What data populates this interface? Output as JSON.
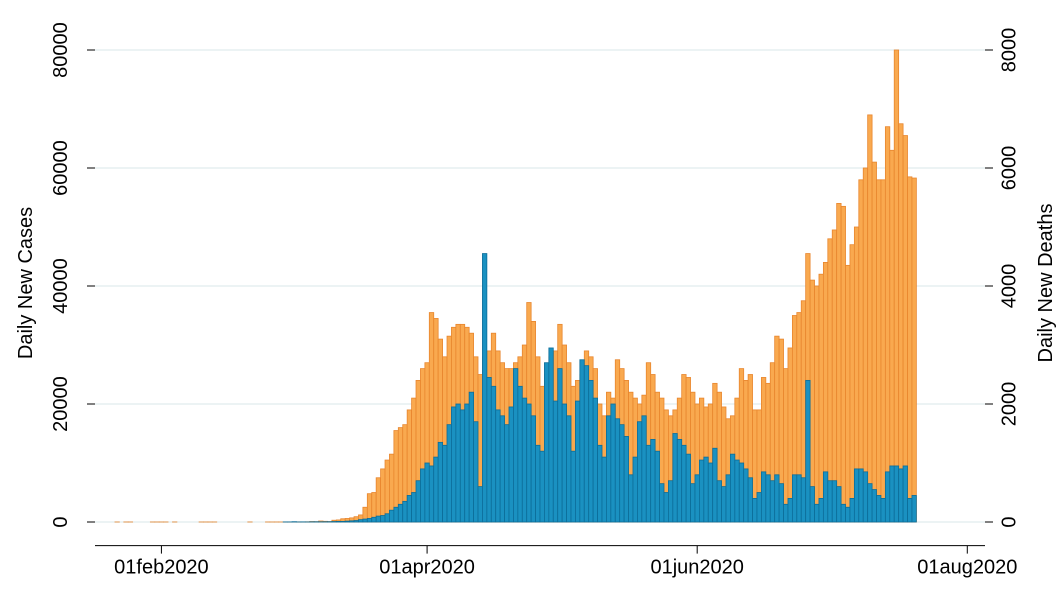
{
  "chart_data": {
    "type": "bar",
    "x_label": null,
    "ylabel": "Daily New Cases",
    "y2label": "Daily New Deaths",
    "x": [
      "2020-01-22",
      "2020-01-23",
      "2020-01-24",
      "2020-01-25",
      "2020-01-26",
      "2020-01-27",
      "2020-01-28",
      "2020-01-29",
      "2020-01-30",
      "2020-01-31",
      "2020-02-01",
      "2020-02-02",
      "2020-02-03",
      "2020-02-04",
      "2020-02-05",
      "2020-02-06",
      "2020-02-07",
      "2020-02-08",
      "2020-02-09",
      "2020-02-10",
      "2020-02-11",
      "2020-02-12",
      "2020-02-13",
      "2020-02-14",
      "2020-02-15",
      "2020-02-16",
      "2020-02-17",
      "2020-02-18",
      "2020-02-19",
      "2020-02-20",
      "2020-02-21",
      "2020-02-22",
      "2020-02-23",
      "2020-02-24",
      "2020-02-25",
      "2020-02-26",
      "2020-02-27",
      "2020-02-28",
      "2020-02-29",
      "2020-03-01",
      "2020-03-02",
      "2020-03-03",
      "2020-03-04",
      "2020-03-05",
      "2020-03-06",
      "2020-03-07",
      "2020-03-08",
      "2020-03-09",
      "2020-03-10",
      "2020-03-11",
      "2020-03-12",
      "2020-03-13",
      "2020-03-14",
      "2020-03-15",
      "2020-03-16",
      "2020-03-17",
      "2020-03-18",
      "2020-03-19",
      "2020-03-20",
      "2020-03-21",
      "2020-03-22",
      "2020-03-23",
      "2020-03-24",
      "2020-03-25",
      "2020-03-26",
      "2020-03-27",
      "2020-03-28",
      "2020-03-29",
      "2020-03-30",
      "2020-03-31",
      "2020-04-01",
      "2020-04-02",
      "2020-04-03",
      "2020-04-04",
      "2020-04-05",
      "2020-04-06",
      "2020-04-07",
      "2020-04-08",
      "2020-04-09",
      "2020-04-10",
      "2020-04-11",
      "2020-04-12",
      "2020-04-13",
      "2020-04-14",
      "2020-04-15",
      "2020-04-16",
      "2020-04-17",
      "2020-04-18",
      "2020-04-19",
      "2020-04-20",
      "2020-04-21",
      "2020-04-22",
      "2020-04-23",
      "2020-04-24",
      "2020-04-25",
      "2020-04-26",
      "2020-04-27",
      "2020-04-28",
      "2020-04-29",
      "2020-04-30",
      "2020-05-01",
      "2020-05-02",
      "2020-05-03",
      "2020-05-04",
      "2020-05-05",
      "2020-05-06",
      "2020-05-07",
      "2020-05-08",
      "2020-05-09",
      "2020-05-10",
      "2020-05-11",
      "2020-05-12",
      "2020-05-13",
      "2020-05-14",
      "2020-05-15",
      "2020-05-16",
      "2020-05-17",
      "2020-05-18",
      "2020-05-19",
      "2020-05-20",
      "2020-05-21",
      "2020-05-22",
      "2020-05-23",
      "2020-05-24",
      "2020-05-25",
      "2020-05-26",
      "2020-05-27",
      "2020-05-28",
      "2020-05-29",
      "2020-05-30",
      "2020-05-31",
      "2020-06-01",
      "2020-06-02",
      "2020-06-03",
      "2020-06-04",
      "2020-06-05",
      "2020-06-06",
      "2020-06-07",
      "2020-06-08",
      "2020-06-09",
      "2020-06-10",
      "2020-06-11",
      "2020-06-12",
      "2020-06-13",
      "2020-06-14",
      "2020-06-15",
      "2020-06-16",
      "2020-06-17",
      "2020-06-18",
      "2020-06-19",
      "2020-06-20",
      "2020-06-21",
      "2020-06-22",
      "2020-06-23",
      "2020-06-24",
      "2020-06-25",
      "2020-06-26",
      "2020-06-27",
      "2020-06-28",
      "2020-06-29",
      "2020-06-30",
      "2020-07-01",
      "2020-07-02",
      "2020-07-03",
      "2020-07-04",
      "2020-07-05",
      "2020-07-06",
      "2020-07-07",
      "2020-07-08",
      "2020-07-09",
      "2020-07-10",
      "2020-07-11",
      "2020-07-12",
      "2020-07-13",
      "2020-07-14",
      "2020-07-15",
      "2020-07-16",
      "2020-07-17",
      "2020-07-18",
      "2020-07-19",
      "2020-07-20"
    ],
    "series": [
      {
        "name": "Daily New Cases",
        "color": "#f9a94f",
        "edge": "#e8862e",
        "axis": "y",
        "values": [
          1,
          0,
          1,
          2,
          0,
          0,
          0,
          0,
          1,
          1,
          1,
          1,
          0,
          3,
          0,
          0,
          0,
          0,
          0,
          1,
          1,
          1,
          1,
          0,
          0,
          0,
          0,
          0,
          0,
          0,
          3,
          0,
          0,
          0,
          2,
          1,
          2,
          1,
          5,
          8,
          7,
          23,
          19,
          33,
          77,
          53,
          166,
          116,
          75,
          300,
          350,
          550,
          600,
          700,
          900,
          1200,
          2500,
          4800,
          5000,
          7500,
          9000,
          10500,
          11500,
          15500,
          16000,
          16500,
          19000,
          21000,
          24000,
          26000,
          27000,
          35500,
          34500,
          31000,
          28000,
          31500,
          33000,
          33500,
          33500,
          33000,
          32000,
          28000,
          25000,
          28000,
          29000,
          32000,
          29000,
          27000,
          26000,
          26000,
          27000,
          28000,
          30000,
          37200,
          34000,
          28000,
          23000,
          25000,
          28000,
          29000,
          33500,
          30000,
          27000,
          23000,
          24000,
          25000,
          29000,
          28000,
          26000,
          20000,
          18000,
          22000,
          21000,
          27500,
          26000,
          24000,
          22000,
          21000,
          20000,
          21500,
          27000,
          25000,
          22000,
          21000,
          19000,
          18000,
          19000,
          21000,
          25000,
          24500,
          22000,
          20000,
          21000,
          19500,
          20000,
          23500,
          22000,
          19500,
          17500,
          18000,
          21000,
          26000,
          24000,
          25000,
          19000,
          19000,
          24500,
          23500,
          27000,
          31500,
          31000,
          26000,
          29500,
          35000,
          35500,
          37500,
          45500,
          41000,
          40000,
          42000,
          44000,
          48000,
          49500,
          54000,
          53500,
          43500,
          47000,
          50000,
          58000,
          60000,
          69000,
          61000,
          58000,
          58000,
          67000,
          63000,
          80000,
          67500,
          65500,
          58500,
          58300
        ]
      },
      {
        "name": "Daily New Deaths",
        "color": "#1a91c1",
        "edge": "#0c6d99",
        "axis": "y2",
        "values": [
          0,
          0,
          0,
          0,
          0,
          0,
          0,
          0,
          0,
          0,
          0,
          0,
          0,
          0,
          0,
          0,
          0,
          0,
          0,
          0,
          0,
          0,
          0,
          0,
          0,
          0,
          0,
          0,
          0,
          0,
          0,
          0,
          0,
          0,
          0,
          0,
          0,
          0,
          1,
          1,
          5,
          1,
          2,
          1,
          3,
          4,
          3,
          4,
          5,
          8,
          10,
          10,
          15,
          20,
          25,
          40,
          50,
          60,
          80,
          100,
          110,
          140,
          200,
          250,
          300,
          350,
          450,
          500,
          700,
          900,
          1000,
          950,
          1100,
          1350,
          1300,
          1650,
          1950,
          2000,
          1900,
          2000,
          2200,
          1700,
          600,
          4550,
          2450,
          2300,
          1900,
          1800,
          1650,
          1950,
          2600,
          2300,
          2100,
          2000,
          1800,
          1300,
          1200,
          2700,
          2950,
          2050,
          2600,
          2000,
          1800,
          1200,
          2050,
          2750,
          2650,
          2400,
          2100,
          1300,
          1100,
          1800,
          2000,
          1750,
          1650,
          1450,
          800,
          1100,
          1700,
          1800,
          1300,
          1400,
          1200,
          650,
          500,
          700,
          1500,
          1400,
          1300,
          1150,
          650,
          800,
          1050,
          1100,
          1000,
          1250,
          700,
          600,
          800,
          1150,
          1050,
          1000,
          900,
          750,
          400,
          500,
          850,
          800,
          700,
          800,
          650,
          300,
          400,
          800,
          800,
          750,
          2400,
          600,
          300,
          400,
          850,
          700,
          700,
          600,
          300,
          250,
          400,
          900,
          900,
          850,
          650,
          550,
          450,
          400,
          850,
          950,
          950,
          900,
          950,
          400,
          450
        ]
      }
    ],
    "xlim": [
      "2020-01-17",
      "2020-08-05"
    ],
    "xticks": [
      {
        "value": "2020-02-01",
        "label": "01feb2020"
      },
      {
        "value": "2020-04-01",
        "label": "01apr2020"
      },
      {
        "value": "2020-06-01",
        "label": "01jun2020"
      },
      {
        "value": "2020-08-01",
        "label": "01aug2020"
      }
    ],
    "ylim": [
      -4000,
      84000
    ],
    "yticks": [
      0,
      20000,
      40000,
      60000,
      80000
    ],
    "y2lim": [
      -400,
      8400
    ],
    "y2ticks": [
      0,
      2000,
      4000,
      6000,
      8000
    ],
    "grid": true,
    "grid_color": "#e6eff1"
  }
}
